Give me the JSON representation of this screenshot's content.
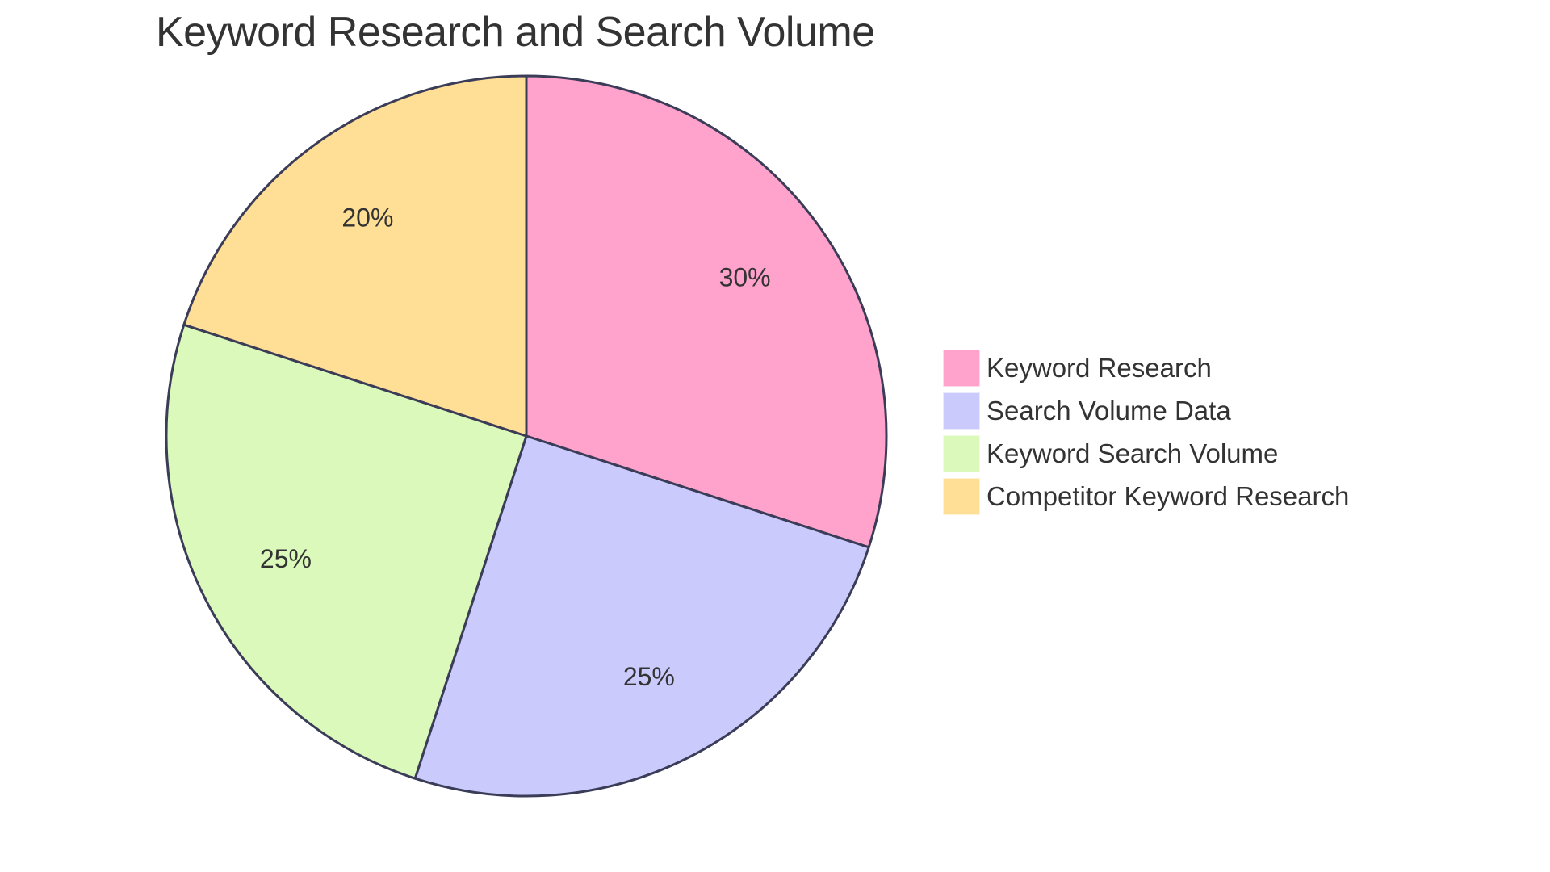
{
  "chart_data": {
    "type": "pie",
    "title": "Keyword Research and Search Volume",
    "categories": [
      "Keyword Research",
      "Search Volume Data",
      "Keyword Search Volume",
      "Competitor Keyword Research"
    ],
    "values": [
      30,
      25,
      25,
      20
    ],
    "labels": [
      "30%",
      "25%",
      "25%",
      "20%"
    ],
    "colors": [
      "#FFA2CC",
      "#CACBFC",
      "#DAF9BA",
      "#FFDE96"
    ],
    "stroke_color": "#3B3D58",
    "start_angle": "12 o'clock",
    "direction": "clockwise",
    "legend_position": "right",
    "xlabel": "",
    "ylabel": ""
  },
  "legend": {
    "items": [
      {
        "label": "Keyword Research",
        "color": "#FFA2CC"
      },
      {
        "label": "Search Volume Data",
        "color": "#CACBFC"
      },
      {
        "label": "Keyword Search Volume",
        "color": "#DAF9BA"
      },
      {
        "label": "Competitor Keyword Research",
        "color": "#FFDE96"
      }
    ]
  }
}
